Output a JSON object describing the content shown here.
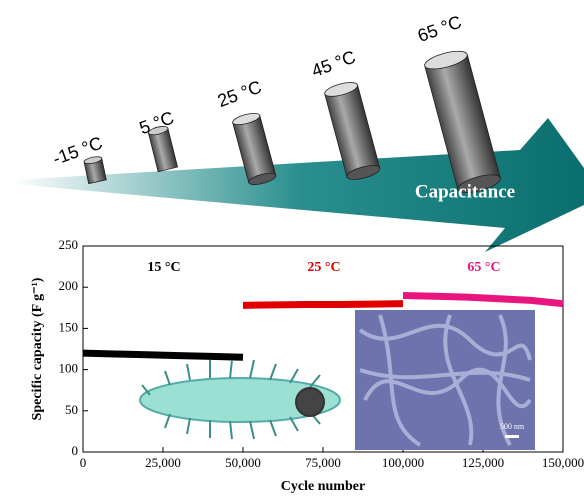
{
  "diagram": {
    "temperatures": [
      "-15 °C",
      "5 °C",
      "25 °C",
      "45 °C",
      "65 °C"
    ],
    "arrow_label": "Capacitance",
    "scale_bar": "500 nm"
  },
  "chart_data": {
    "type": "line",
    "xlabel": "Cycle number",
    "ylabel": "Specific capacity (F g⁻¹)",
    "xlim": [
      0,
      150000
    ],
    "xticks": [
      0,
      {
        "value": 25000,
        "label": "25,000"
      },
      {
        "value": 50000,
        "label": "50,000"
      },
      {
        "value": 75000,
        "label": "75,000"
      },
      {
        "value": 100000,
        "label": "100,000"
      },
      {
        "value": 125000,
        "label": "125,000"
      },
      {
        "value": 150000,
        "label": "150,000"
      }
    ],
    "ylim": [
      0,
      250
    ],
    "yticks": [
      0,
      50,
      100,
      150,
      200,
      250
    ],
    "series": [
      {
        "name": "15 °C",
        "color": "#000000",
        "x": [
          0,
          10000,
          20000,
          30000,
          40000,
          50000
        ],
        "values": [
          120,
          119,
          118,
          117,
          116,
          115
        ]
      },
      {
        "name": "25 °C",
        "color": "#e00000",
        "x": [
          50000,
          60000,
          70000,
          80000,
          90000,
          100000
        ],
        "values": [
          178,
          178.5,
          179,
          179,
          179.5,
          180
        ]
      },
      {
        "name": "65 °C",
        "color": "#e8157f",
        "x": [
          100000,
          110000,
          120000,
          130000,
          140000,
          150000
        ],
        "values": [
          190,
          189,
          188,
          186,
          184,
          180
        ]
      }
    ]
  }
}
